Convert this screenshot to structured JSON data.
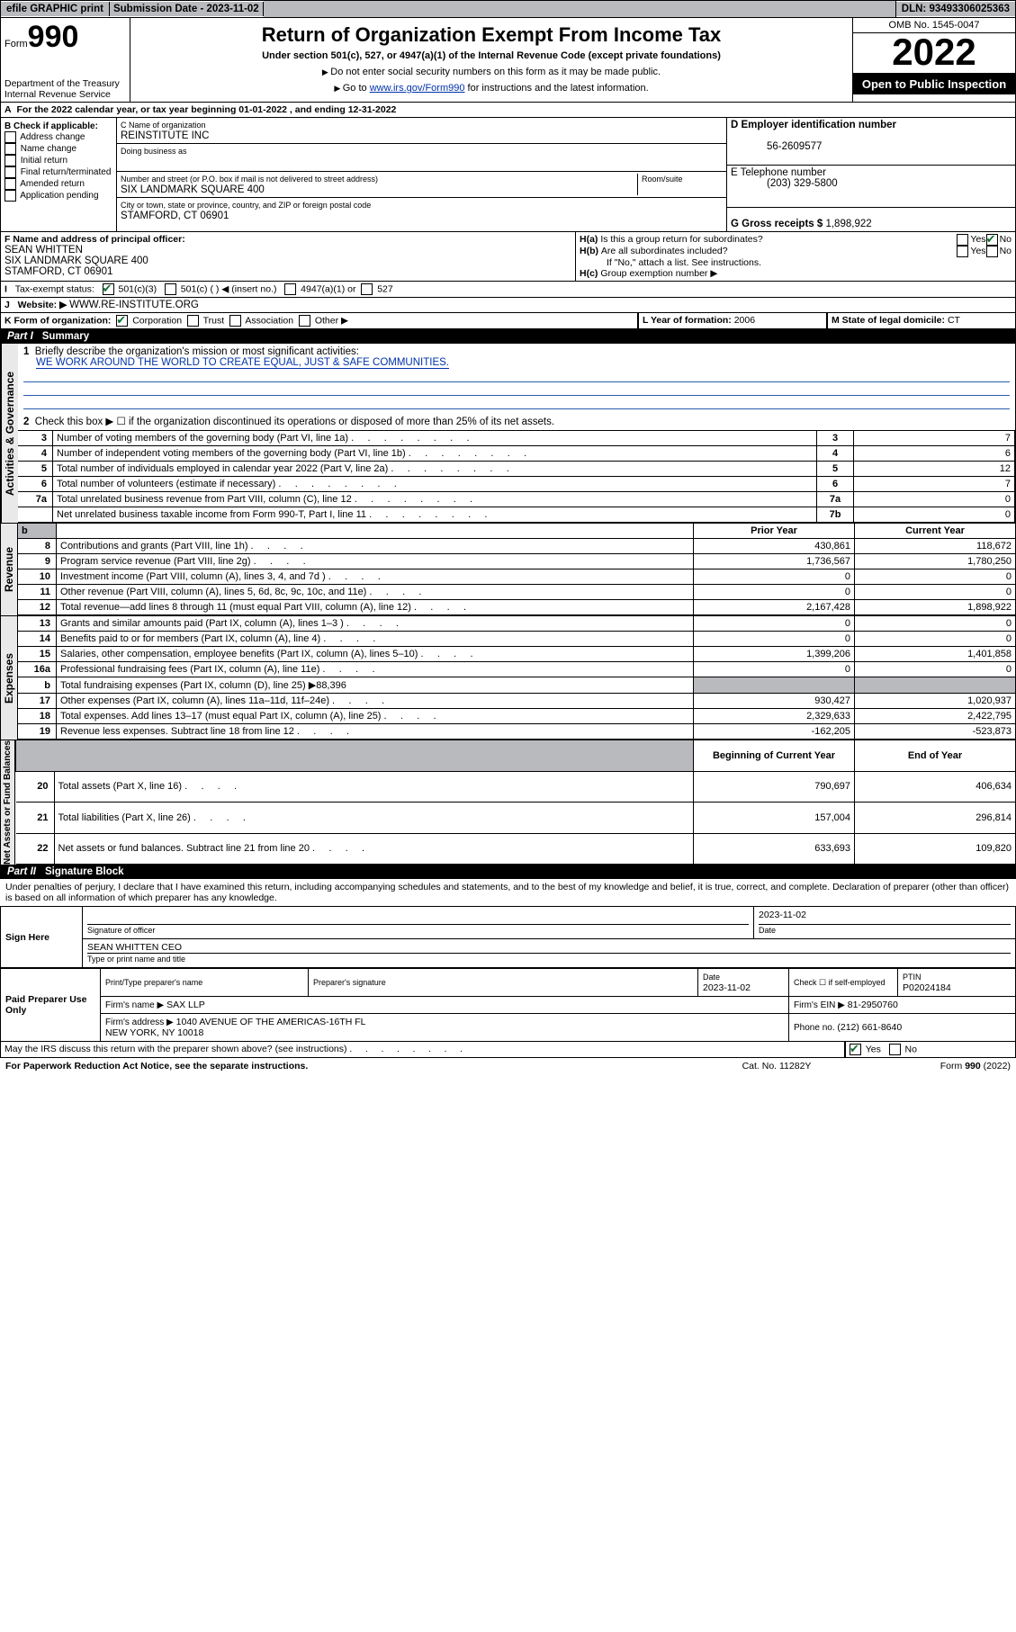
{
  "topbar": {
    "efile": "efile GRAPHIC print",
    "subdate_lbl": "Submission Date - ",
    "subdate": "2023-11-02",
    "dln_lbl": "DLN: ",
    "dln": "93493306025363"
  },
  "header": {
    "form_prefix": "Form",
    "form_number": "990",
    "dept": "Department of the Treasury\nInternal Revenue Service",
    "title": "Return of Organization Exempt From Income Tax",
    "subtitle": "Under section 501(c), 527, or 4947(a)(1) of the Internal Revenue Code (except private foundations)",
    "note1": "Do not enter social security numbers on this form as it may be made public.",
    "note2_pre": "Go to ",
    "note2_link": "www.irs.gov/Form990",
    "note2_post": " for instructions and the latest information.",
    "omb": "OMB No. 1545-0047",
    "year": "2022",
    "open": "Open to Public Inspection"
  },
  "lineA": {
    "label": "A",
    "text_pre": "For the 2022 calendar year, or tax year beginning ",
    "begin": "01-01-2022",
    "mid": " , and ending ",
    "end": "12-31-2022"
  },
  "colB": {
    "title": "B Check if applicable:",
    "opts": [
      "Address change",
      "Name change",
      "Initial return",
      "Final return/terminated",
      "Amended return",
      "Application pending"
    ]
  },
  "colC": {
    "name_lbl": "C Name of organization",
    "name": "REINSTITUTE INC",
    "dba_lbl": "Doing business as",
    "street_lbl": "Number and street (or P.O. box if mail is not delivered to street address)",
    "room_lbl": "Room/suite",
    "street": "SIX LANDMARK SQUARE 400",
    "city_lbl": "City or town, state or province, country, and ZIP or foreign postal code",
    "city": "STAMFORD, CT  06901"
  },
  "colD": {
    "ein_lbl": "D Employer identification number",
    "ein": "56-2609577",
    "tel_lbl": "E Telephone number",
    "tel": "(203) 329-5800",
    "gross_lbl": "G Gross receipts $ ",
    "gross": "1,898,922"
  },
  "F": {
    "lbl": "F Name and address of principal officer:",
    "name": "SEAN WHITTEN",
    "addr": "SIX LANDMARK SQUARE 400\nSTAMFORD, CT  06901"
  },
  "H": {
    "a": "Is this a group return for subordinates?",
    "b": "Are all subordinates included?",
    "b2": "If \"No,\" attach a list. See instructions.",
    "c": "Group exemption number ▶"
  },
  "I": {
    "lbl": "Tax-exempt status:",
    "o1": "501(c)(3)",
    "o2": "501(c) (   ) ◀ (insert no.)",
    "o3": "4947(a)(1) or",
    "o4": "527"
  },
  "J": {
    "lbl": "Website: ▶",
    "val": "WWW.RE-INSTITUTE.ORG"
  },
  "K": {
    "lbl": "K Form of organization:",
    "opts": [
      "Corporation",
      "Trust",
      "Association",
      "Other ▶"
    ]
  },
  "L": {
    "lbl": "L Year of formation: ",
    "val": "2006"
  },
  "M": {
    "lbl": "M State of legal domicile: ",
    "val": "CT"
  },
  "part1": {
    "title": "Part I",
    "name": "Summary"
  },
  "part2": {
    "title": "Part II",
    "name": "Signature Block"
  },
  "summary": {
    "line1_lbl": "Briefly describe the organization's mission or most significant activities:",
    "line1": "WE WORK AROUND THE WORLD TO CREATE EQUAL, JUST & SAFE COMMUNITIES.",
    "line2": "Check this box ▶ ☐  if the organization discontinued its operations or disposed of more than 25% of its net assets.",
    "rows": [
      {
        "n": "3",
        "t": "Number of voting members of the governing body (Part VI, line 1a)",
        "k": "3",
        "v": "7"
      },
      {
        "n": "4",
        "t": "Number of independent voting members of the governing body (Part VI, line 1b)",
        "k": "4",
        "v": "6"
      },
      {
        "n": "5",
        "t": "Total number of individuals employed in calendar year 2022 (Part V, line 2a)",
        "k": "5",
        "v": "12"
      },
      {
        "n": "6",
        "t": "Total number of volunteers (estimate if necessary)",
        "k": "6",
        "v": "7"
      },
      {
        "n": "7a",
        "t": "Total unrelated business revenue from Part VIII, column (C), line 12",
        "k": "7a",
        "v": "0"
      },
      {
        "n": "",
        "t": "Net unrelated business taxable income from Form 990-T, Part I, line 11",
        "k": "7b",
        "v": "0"
      }
    ],
    "pcolA": "Prior Year",
    "pcolB": "Current Year",
    "rev": [
      {
        "n": "8",
        "t": "Contributions and grants (Part VIII, line 1h)",
        "a": "430,861",
        "b": "118,672"
      },
      {
        "n": "9",
        "t": "Program service revenue (Part VIII, line 2g)",
        "a": "1,736,567",
        "b": "1,780,250"
      },
      {
        "n": "10",
        "t": "Investment income (Part VIII, column (A), lines 3, 4, and 7d )",
        "a": "0",
        "b": "0"
      },
      {
        "n": "11",
        "t": "Other revenue (Part VIII, column (A), lines 5, 6d, 8c, 9c, 10c, and 11e)",
        "a": "0",
        "b": "0"
      },
      {
        "n": "12",
        "t": "Total revenue—add lines 8 through 11 (must equal Part VIII, column (A), line 12)",
        "a": "2,167,428",
        "b": "1,898,922"
      }
    ],
    "exp": [
      {
        "n": "13",
        "t": "Grants and similar amounts paid (Part IX, column (A), lines 1–3 )",
        "a": "0",
        "b": "0"
      },
      {
        "n": "14",
        "t": "Benefits paid to or for members (Part IX, column (A), line 4)",
        "a": "0",
        "b": "0"
      },
      {
        "n": "15",
        "t": "Salaries, other compensation, employee benefits (Part IX, column (A), lines 5–10)",
        "a": "1,399,206",
        "b": "1,401,858"
      },
      {
        "n": "16a",
        "t": "Professional fundraising fees (Part IX, column (A), line 11e)",
        "a": "0",
        "b": "0"
      },
      {
        "n": "b",
        "t": "Total fundraising expenses (Part IX, column (D), line 25) ▶88,396",
        "a": "",
        "b": "",
        "grey": true
      },
      {
        "n": "17",
        "t": "Other expenses (Part IX, column (A), lines 11a–11d, 11f–24e)",
        "a": "930,427",
        "b": "1,020,937"
      },
      {
        "n": "18",
        "t": "Total expenses. Add lines 13–17 (must equal Part IX, column (A), line 25)",
        "a": "2,329,633",
        "b": "2,422,795"
      },
      {
        "n": "19",
        "t": "Revenue less expenses. Subtract line 18 from line 12",
        "a": "-162,205",
        "b": "-523,873"
      }
    ],
    "ncolA": "Beginning of Current Year",
    "ncolB": "End of Year",
    "net": [
      {
        "n": "20",
        "t": "Total assets (Part X, line 16)",
        "a": "790,697",
        "b": "406,634"
      },
      {
        "n": "21",
        "t": "Total liabilities (Part X, line 26)",
        "a": "157,004",
        "b": "296,814"
      },
      {
        "n": "22",
        "t": "Net assets or fund balances. Subtract line 21 from line 20",
        "a": "633,693",
        "b": "109,820"
      }
    ],
    "sections": [
      "Activities & Governance",
      "Revenue",
      "Expenses",
      "Net Assets or Fund Balances"
    ]
  },
  "sig": {
    "perjury": "Under penalties of perjury, I declare that I have examined this return, including accompanying schedules and statements, and to the best of my knowledge and belief, it is true, correct, and complete. Declaration of preparer (other than officer) is based on all information of which preparer has any knowledge.",
    "sign_here": "Sign Here",
    "sig_officer": "Signature of officer",
    "date": "2023-11-02",
    "date_lbl": "Date",
    "typed_name": "SEAN WHITTEN CEO",
    "typed_lbl": "Type or print name and title",
    "paid": "Paid Preparer Use Only",
    "prep_name_lbl": "Print/Type preparer's name",
    "prep_sig_lbl": "Preparer's signature",
    "prep_date": "2023-11-02",
    "check_self": "Check ☐ if self-employed",
    "ptin_lbl": "PTIN",
    "ptin": "P02024184",
    "firm_name_lbl": "Firm's name   ▶",
    "firm_name": "SAX LLP",
    "firm_ein_lbl": "Firm's EIN ▶",
    "firm_ein": "81-2950760",
    "firm_addr_lbl": "Firm's address ▶",
    "firm_addr": "1040 AVENUE OF THE AMERICAS-16TH FL\nNEW YORK, NY  10018",
    "phone_lbl": "Phone no. ",
    "phone": "(212) 661-8640",
    "discuss": "May the IRS discuss this return with the preparer shown above? (see instructions)",
    "paperwork": "For Paperwork Reduction Act Notice, see the separate instructions.",
    "cat": "Cat. No. 11282Y",
    "formfoot": "Form 990 (2022)"
  }
}
